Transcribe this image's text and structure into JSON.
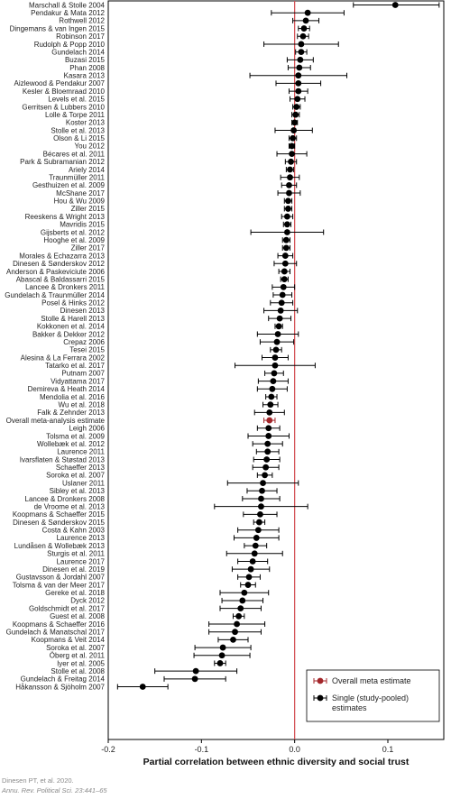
{
  "chart_data": {
    "type": "forest",
    "xlabel": "Partial correlation between ethnic diversity and social trust",
    "xlim": [
      -0.2,
      0.16
    ],
    "xticks": [
      "-0.2",
      "-0.1",
      "0.0",
      "0.1"
    ],
    "xtick_values": [
      -0.2,
      -0.1,
      0.0,
      0.1
    ],
    "reference_line": 0.0,
    "legend": [
      {
        "label": "Overall meta estimate",
        "color": "#a3262a"
      },
      {
        "label": "Single (study-pooled) estimates",
        "color": "#000000"
      }
    ],
    "legend_placement": "bottom-right",
    "studies": [
      {
        "name": "Marschall & Stolle 2004",
        "est": 0.108,
        "lo": 0.063,
        "hi": 0.155
      },
      {
        "name": "Pendakur & Mata 2012",
        "est": 0.014,
        "lo": -0.025,
        "hi": 0.053
      },
      {
        "name": "Rothwell 2012",
        "est": 0.012,
        "lo": -0.002,
        "hi": 0.026
      },
      {
        "name": "Dingemans & van Ingen 2015",
        "est": 0.01,
        "lo": 0.004,
        "hi": 0.016
      },
      {
        "name": "Robinson 2017",
        "est": 0.009,
        "lo": 0.003,
        "hi": 0.015
      },
      {
        "name": "Rudolph & Popp 2010",
        "est": 0.007,
        "lo": -0.033,
        "hi": 0.047
      },
      {
        "name": "Gundelach 2014",
        "est": 0.007,
        "lo": 0.001,
        "hi": 0.013
      },
      {
        "name": "Buzasi 2015",
        "est": 0.006,
        "lo": -0.008,
        "hi": 0.02
      },
      {
        "name": "Phan 2008",
        "est": 0.005,
        "lo": -0.007,
        "hi": 0.017
      },
      {
        "name": "Kasara 2013",
        "est": 0.004,
        "lo": -0.048,
        "hi": 0.056
      },
      {
        "name": "Aizlewood & Pendakur 2007",
        "est": 0.004,
        "lo": -0.02,
        "hi": 0.028
      },
      {
        "name": "Kesler & Bloemraad 2010",
        "est": 0.004,
        "lo": -0.006,
        "hi": 0.014
      },
      {
        "name": "Levels et al. 2015",
        "est": 0.003,
        "lo": -0.005,
        "hi": 0.011
      },
      {
        "name": "Gerritsen & Lubbers 2010",
        "est": 0.002,
        "lo": -0.002,
        "hi": 0.006
      },
      {
        "name": "Lolle & Torpe 2011",
        "est": 0.001,
        "lo": -0.003,
        "hi": 0.005
      },
      {
        "name": "Koster 2013",
        "est": 0.0,
        "lo": -0.003,
        "hi": 0.003
      },
      {
        "name": "Stolle et al. 2013",
        "est": -0.001,
        "lo": -0.021,
        "hi": 0.019
      },
      {
        "name": "Olson & Li 2015",
        "est": -0.002,
        "lo": -0.006,
        "hi": 0.002
      },
      {
        "name": "You 2012",
        "est": -0.003,
        "lo": -0.006,
        "hi": 0.0
      },
      {
        "name": "Bécares et al. 2011",
        "est": -0.003,
        "lo": -0.019,
        "hi": 0.013
      },
      {
        "name": "Park & Subramanian 2012",
        "est": -0.004,
        "lo": -0.01,
        "hi": 0.002
      },
      {
        "name": "Ariely 2014",
        "est": -0.005,
        "lo": -0.009,
        "hi": -0.001
      },
      {
        "name": "Traunmüller 2011",
        "est": -0.005,
        "lo": -0.015,
        "hi": 0.005
      },
      {
        "name": "Gesthuizen et al. 2009",
        "est": -0.006,
        "lo": -0.014,
        "hi": 0.002
      },
      {
        "name": "McShane 2017",
        "est": -0.006,
        "lo": -0.018,
        "hi": 0.006
      },
      {
        "name": "Hou & Wu 2009",
        "est": -0.007,
        "lo": -0.011,
        "hi": -0.003
      },
      {
        "name": "Ziller 2015",
        "est": -0.007,
        "lo": -0.011,
        "hi": -0.003
      },
      {
        "name": "Reeskens & Wright 2013",
        "est": -0.008,
        "lo": -0.014,
        "hi": -0.002
      },
      {
        "name": "Mavridis 2015",
        "est": -0.008,
        "lo": -0.012,
        "hi": -0.004
      },
      {
        "name": "Gijsberts et al. 2012",
        "est": -0.008,
        "lo": -0.047,
        "hi": 0.031
      },
      {
        "name": "Hooghe et al. 2009",
        "est": -0.009,
        "lo": -0.013,
        "hi": -0.005
      },
      {
        "name": "Ziller 2017",
        "est": -0.009,
        "lo": -0.013,
        "hi": -0.005
      },
      {
        "name": "Morales & Echazarra 2013",
        "est": -0.01,
        "lo": -0.018,
        "hi": -0.002
      },
      {
        "name": "Dinesen & Sønderskov 2012",
        "est": -0.01,
        "lo": -0.022,
        "hi": 0.002
      },
      {
        "name": "Anderson & Paskeviciute 2006",
        "est": -0.011,
        "lo": -0.017,
        "hi": -0.005
      },
      {
        "name": "Abascal & Baldassarri 2015",
        "est": -0.011,
        "lo": -0.015,
        "hi": -0.007
      },
      {
        "name": "Lancee & Dronkers 2011",
        "est": -0.012,
        "lo": -0.024,
        "hi": 0.0
      },
      {
        "name": "Gundelach & Traunmüller 2014",
        "est": -0.013,
        "lo": -0.023,
        "hi": -0.003
      },
      {
        "name": "Posel & Hinks 2012",
        "est": -0.014,
        "lo": -0.026,
        "hi": -0.002
      },
      {
        "name": "Dinesen 2013",
        "est": -0.015,
        "lo": -0.033,
        "hi": 0.003
      },
      {
        "name": "Stolle & Harell 2013",
        "est": -0.016,
        "lo": -0.028,
        "hi": -0.004
      },
      {
        "name": "Kokkonen et al. 2014",
        "est": -0.017,
        "lo": -0.021,
        "hi": -0.013
      },
      {
        "name": "Bakker & Dekker 2012",
        "est": -0.018,
        "lo": -0.04,
        "hi": 0.004
      },
      {
        "name": "Crepaz 2006",
        "est": -0.019,
        "lo": -0.037,
        "hi": -0.001
      },
      {
        "name": "Tesei 2015",
        "est": -0.02,
        "lo": -0.026,
        "hi": -0.014
      },
      {
        "name": "Alesina & La Ferrara 2002",
        "est": -0.021,
        "lo": -0.035,
        "hi": -0.007
      },
      {
        "name": "Tatarko et al. 2017",
        "est": -0.021,
        "lo": -0.064,
        "hi": 0.022
      },
      {
        "name": "Putnam 2007",
        "est": -0.022,
        "lo": -0.032,
        "hi": -0.012
      },
      {
        "name": "Vidyattama 2017",
        "est": -0.023,
        "lo": -0.039,
        "hi": -0.007
      },
      {
        "name": "Demireva & Heath 2014",
        "est": -0.024,
        "lo": -0.04,
        "hi": -0.008
      },
      {
        "name": "Mendolia et al. 2016",
        "est": -0.025,
        "lo": -0.031,
        "hi": -0.019
      },
      {
        "name": "Wu et al. 2018",
        "est": -0.026,
        "lo": -0.034,
        "hi": -0.018
      },
      {
        "name": "Falk & Zehnder 2013",
        "est": -0.027,
        "lo": -0.043,
        "hi": -0.011
      },
      {
        "name": "Overall meta-analysis estimate",
        "est": -0.027,
        "lo": -0.033,
        "hi": -0.021,
        "overall": true
      },
      {
        "name": "Leigh 2006",
        "est": -0.028,
        "lo": -0.04,
        "hi": -0.016
      },
      {
        "name": "Tolsma et al. 2009",
        "est": -0.028,
        "lo": -0.05,
        "hi": -0.006
      },
      {
        "name": "Wollebæk et al. 2012",
        "est": -0.029,
        "lo": -0.045,
        "hi": -0.013
      },
      {
        "name": "Laurence 2011",
        "est": -0.029,
        "lo": -0.041,
        "hi": -0.017
      },
      {
        "name": "Ivarsflaten & Støstad 2013",
        "est": -0.03,
        "lo": -0.044,
        "hi": -0.016
      },
      {
        "name": "Schaeffer 2013",
        "est": -0.031,
        "lo": -0.045,
        "hi": -0.017
      },
      {
        "name": "Soroka et al. 2007",
        "est": -0.032,
        "lo": -0.04,
        "hi": -0.024
      },
      {
        "name": "Uslaner 2011",
        "est": -0.034,
        "lo": -0.072,
        "hi": 0.004
      },
      {
        "name": "Sibley et al. 2013",
        "est": -0.035,
        "lo": -0.051,
        "hi": -0.019
      },
      {
        "name": "Lancee & Dronkers 2008",
        "est": -0.036,
        "lo": -0.056,
        "hi": -0.016
      },
      {
        "name": "de Vroome et al. 2013",
        "est": -0.036,
        "lo": -0.086,
        "hi": 0.014
      },
      {
        "name": "Koopmans & Schaeffer 2015",
        "est": -0.037,
        "lo": -0.055,
        "hi": -0.019
      },
      {
        "name": "Dinesen & Sønderskov 2015",
        "est": -0.038,
        "lo": -0.044,
        "hi": -0.032
      },
      {
        "name": "Costa & Kahn 2003",
        "est": -0.039,
        "lo": -0.061,
        "hi": -0.017
      },
      {
        "name": "Laurence 2013",
        "est": -0.041,
        "lo": -0.065,
        "hi": -0.017
      },
      {
        "name": "Lundåsen & Wollebæk 2013",
        "est": -0.042,
        "lo": -0.054,
        "hi": -0.03
      },
      {
        "name": "Sturgis et al. 2011",
        "est": -0.043,
        "lo": -0.073,
        "hi": -0.013
      },
      {
        "name": "Laurence 2017",
        "est": -0.045,
        "lo": -0.061,
        "hi": -0.029
      },
      {
        "name": "Dinesen et al. 2019",
        "est": -0.047,
        "lo": -0.067,
        "hi": -0.027
      },
      {
        "name": "Gustavsson & Jordahl 2007",
        "est": -0.049,
        "lo": -0.061,
        "hi": -0.037
      },
      {
        "name": "Tolsma & van der Meer 2017",
        "est": -0.05,
        "lo": -0.058,
        "hi": -0.042
      },
      {
        "name": "Gereke et al. 2018",
        "est": -0.054,
        "lo": -0.08,
        "hi": -0.028
      },
      {
        "name": "Dyck 2012",
        "est": -0.056,
        "lo": -0.078,
        "hi": -0.034
      },
      {
        "name": "Goldschmidt et al. 2017",
        "est": -0.058,
        "lo": -0.08,
        "hi": -0.036
      },
      {
        "name": "Guest et al. 2008",
        "est": -0.06,
        "lo": -0.066,
        "hi": -0.054
      },
      {
        "name": "Koopmans & Schaeffer 2016",
        "est": -0.062,
        "lo": -0.092,
        "hi": -0.032
      },
      {
        "name": "Gundelach & Manatschal 2017",
        "est": -0.064,
        "lo": -0.092,
        "hi": -0.036
      },
      {
        "name": "Koopmans & Veit 2014",
        "est": -0.066,
        "lo": -0.082,
        "hi": -0.05
      },
      {
        "name": "Soroka et al. 2007",
        "est": -0.077,
        "lo": -0.107,
        "hi": -0.047
      },
      {
        "name": "Öberg et al. 2011",
        "est": -0.078,
        "lo": -0.108,
        "hi": -0.048
      },
      {
        "name": "Iyer et al. 2005",
        "est": -0.08,
        "lo": -0.086,
        "hi": -0.074
      },
      {
        "name": "Stolle et al. 2008",
        "est": -0.106,
        "lo": -0.15,
        "hi": -0.062
      },
      {
        "name": "Gundelach & Freitag 2014",
        "est": -0.107,
        "lo": -0.14,
        "hi": -0.074
      },
      {
        "name": "Håkansson & Sjöholm 2007",
        "est": -0.163,
        "lo": -0.19,
        "hi": -0.136
      }
    ]
  },
  "citation": {
    "line1": "Dinesen PT, et al. 2020.",
    "line2": "Annu. Rev. Political Sci. 23:441–65"
  }
}
